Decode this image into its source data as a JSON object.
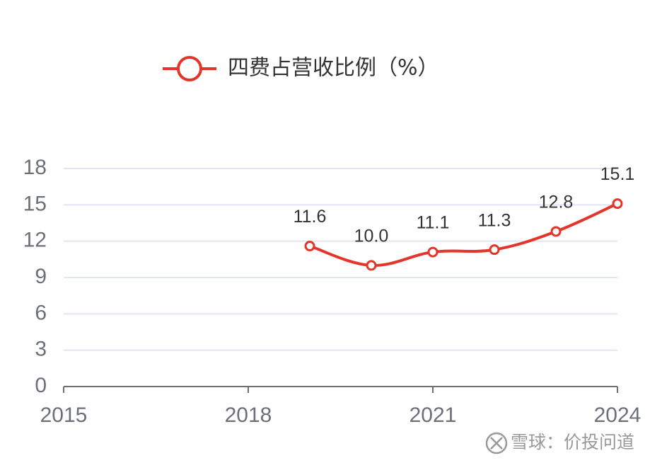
{
  "chart_data": {
    "type": "line",
    "x": [
      2019,
      2020,
      2021,
      2022,
      2023,
      2024
    ],
    "series": [
      {
        "name": "四费占营收比例（%）",
        "color": "#e4352b",
        "values": [
          11.6,
          10,
          11.1,
          11.3,
          12.8,
          15.1
        ],
        "value_labels": [
          "11.6",
          "10.0",
          "11.1",
          "11.3",
          "12.8",
          "15.1"
        ]
      }
    ],
    "xlim": [
      2015,
      2024
    ],
    "xticks": [
      2015,
      2018,
      2021,
      2024
    ],
    "ylim": [
      0,
      18
    ],
    "yticks": [
      0,
      3,
      6,
      9,
      12,
      15,
      18
    ],
    "grid": true,
    "legend": "top",
    "watermark": "雪球：价投问道"
  }
}
